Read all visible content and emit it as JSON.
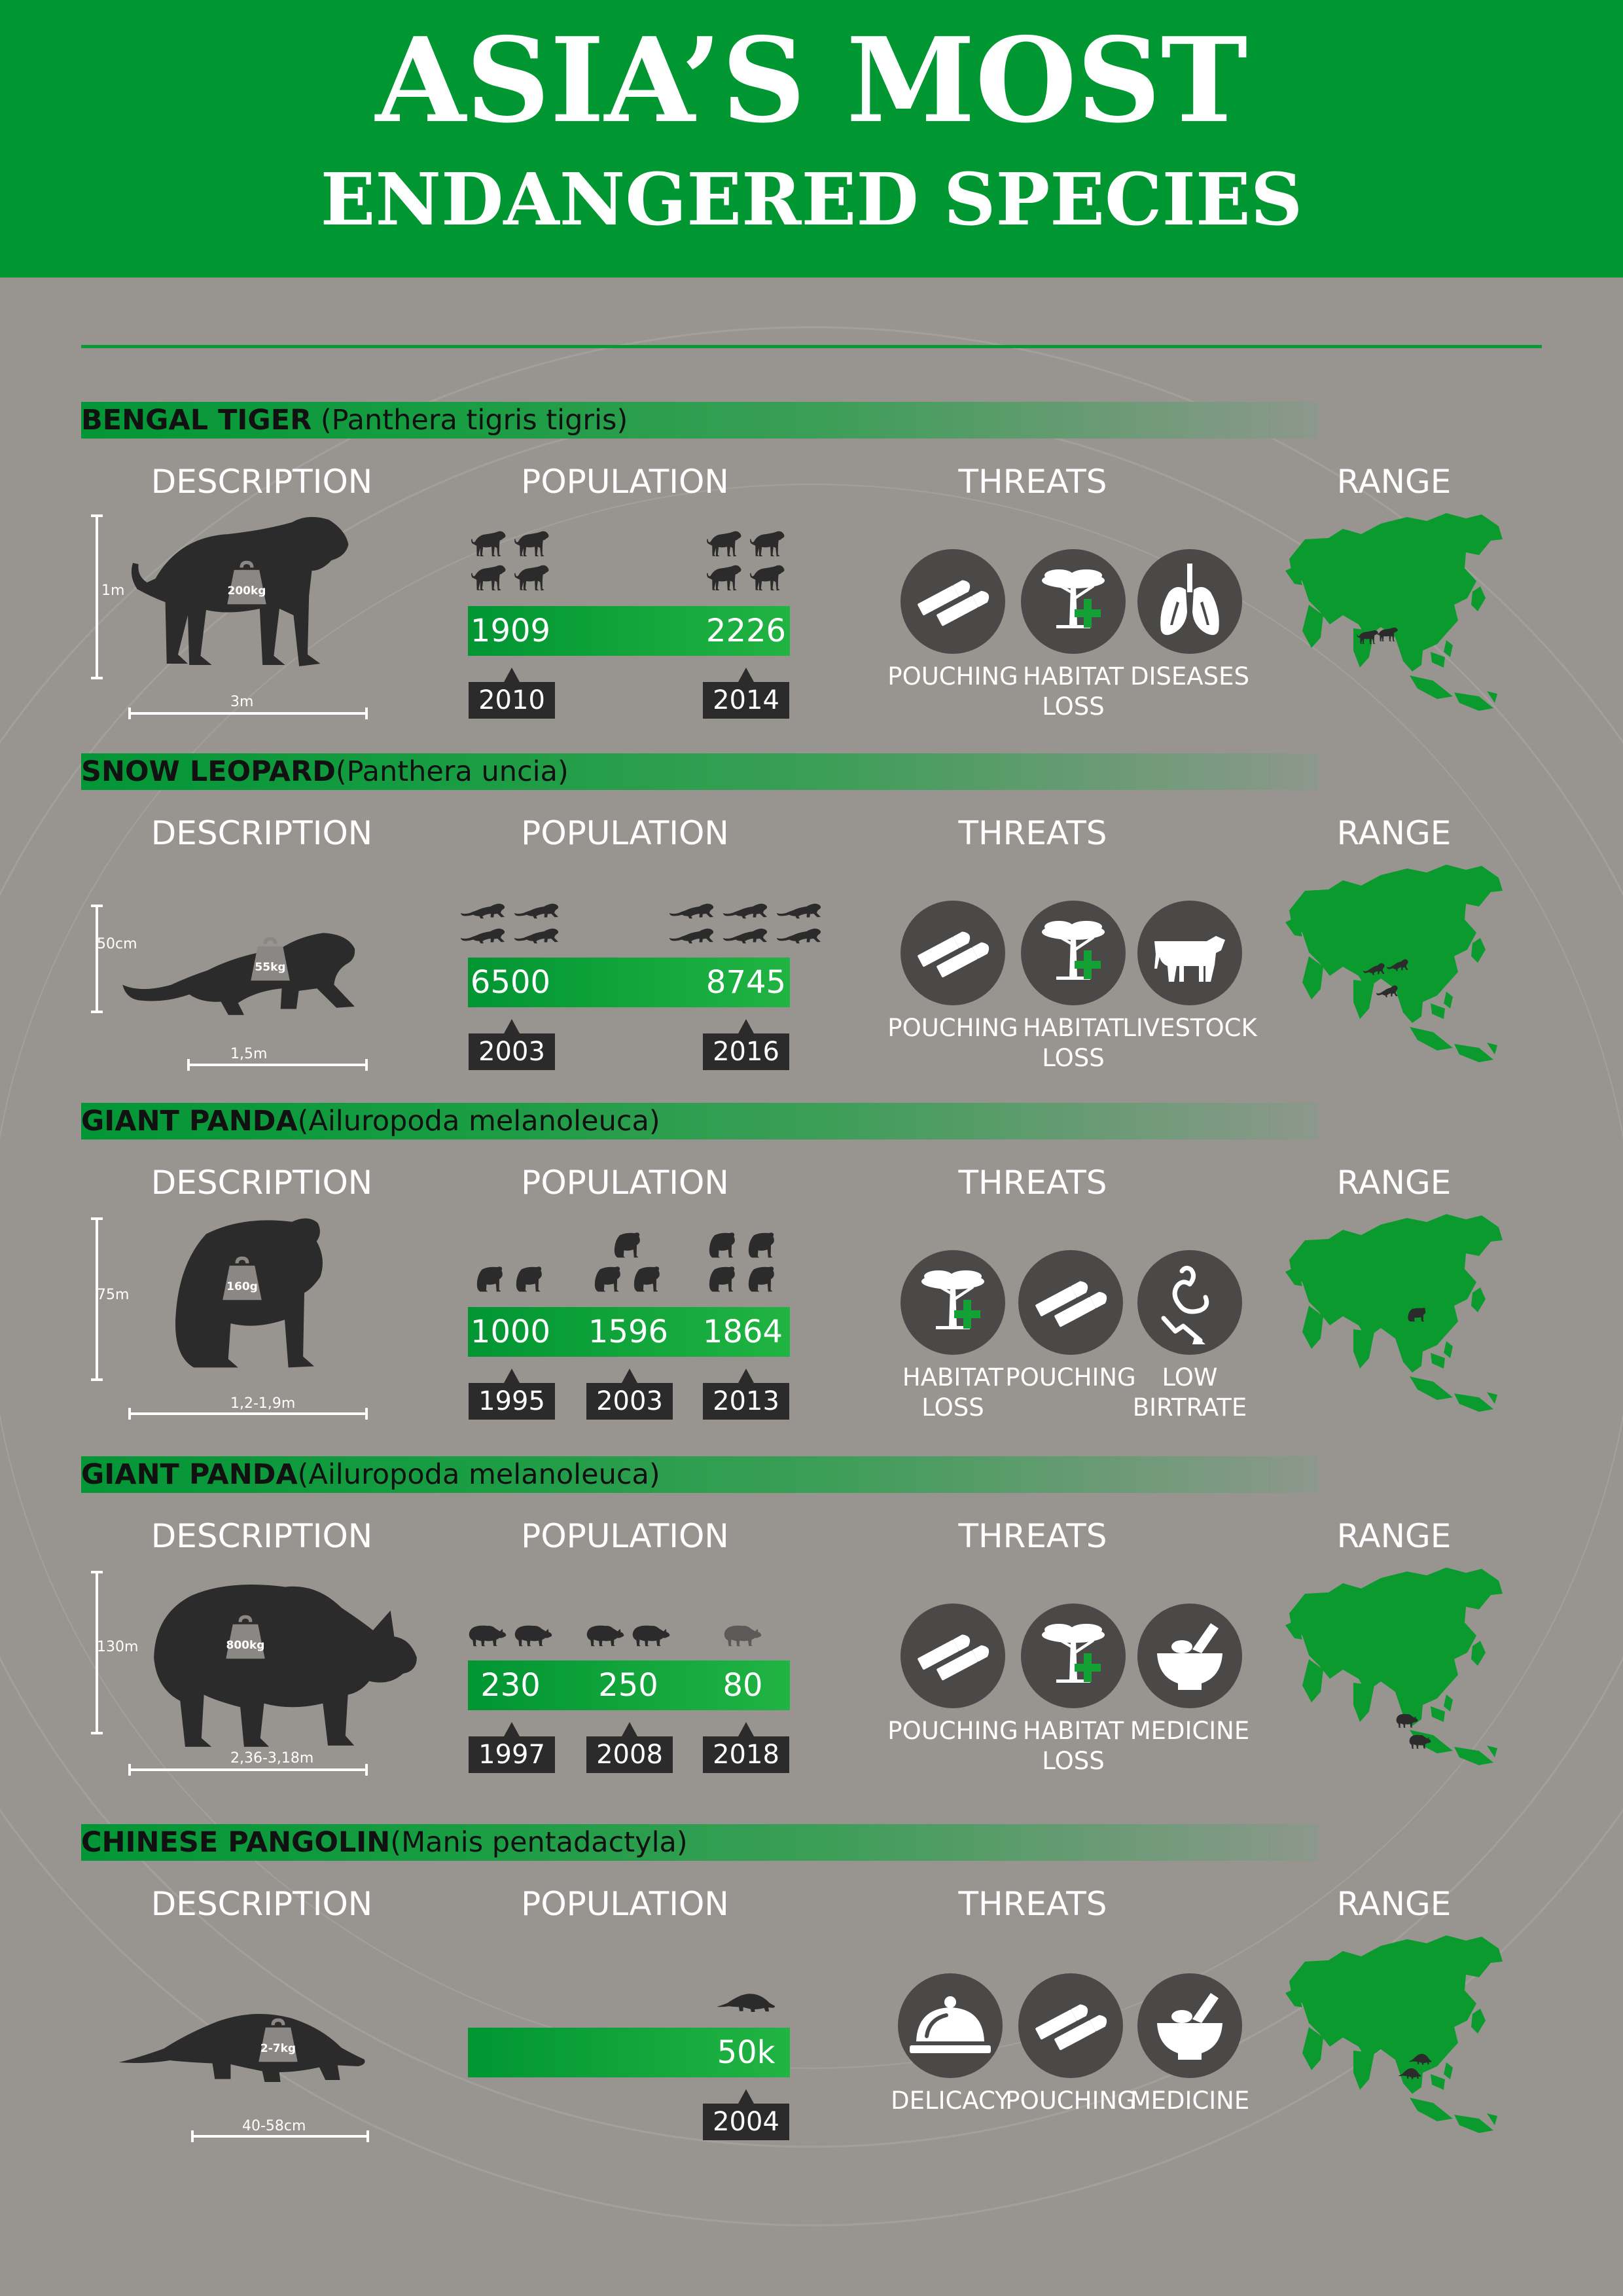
{
  "title": {
    "line1": "ASIA’S MOST",
    "line2": "ENDANGERED SPECIES"
  },
  "column_headers": {
    "description": "DESCRIPTION",
    "population": "POPULATION",
    "threats": "THREATS",
    "range": "RANGE"
  },
  "colors": {
    "header_green": "#009632",
    "background": "#989590",
    "icon_circle": "#4b4948",
    "year_box": "#2b2b2b",
    "map_green": "#0a9a2e"
  },
  "species": [
    {
      "common_name": "BENGAL TIGER",
      "scientific_name": " (Panthera tigris tigris)",
      "height": "1m",
      "length": "3m",
      "weight": "200kg",
      "population": [
        "1909",
        "2226"
      ],
      "years": [
        "2010",
        "2014"
      ],
      "threats": [
        {
          "label": "POUCHING",
          "icon": "bullets-icon"
        },
        {
          "label": "HABITAT\nLOSS",
          "icon": "tree-icon"
        },
        {
          "label": "DISEASES",
          "icon": "lungs-icon"
        }
      ]
    },
    {
      "common_name": "SNOW LEOPARD",
      "scientific_name": "(Panthera uncia)",
      "height": "50cm",
      "length": "1,5m",
      "weight": "55kg",
      "population": [
        "6500",
        "8745"
      ],
      "years": [
        "2003",
        "2016"
      ],
      "threats": [
        {
          "label": "POUCHING",
          "icon": "bullets-icon"
        },
        {
          "label": "HABITAT\nLOSS",
          "icon": "tree-icon"
        },
        {
          "label": "LIVESTOCK",
          "icon": "cow-icon"
        }
      ]
    },
    {
      "common_name": "GIANT PANDA",
      "scientific_name": "(Ailuropoda melanoleuca)",
      "height": "75m",
      "length": "1,2-1,9m",
      "weight": "160g",
      "population": [
        "1000",
        "1596",
        "1864"
      ],
      "years": [
        "1995",
        "2003",
        "2013"
      ],
      "threats": [
        {
          "label": "HABITAT\nLOSS",
          "icon": "tree-icon"
        },
        {
          "label": "POUCHING",
          "icon": "bullets-icon"
        },
        {
          "label": "LOW\nBIRTRATE",
          "icon": "stork-icon"
        }
      ]
    },
    {
      "common_name": "GIANT PANDA",
      "scientific_name": "(Ailuropoda melanoleuca)",
      "height": "130m",
      "length": "2,36-3,18m",
      "weight": "800kg",
      "population": [
        "230",
        "250",
        "80"
      ],
      "years": [
        "1997",
        "2008",
        "2018"
      ],
      "threats": [
        {
          "label": "POUCHING",
          "icon": "bullets-icon"
        },
        {
          "label": "HABITAT\nLOSS",
          "icon": "tree-icon"
        },
        {
          "label": "MEDICINE",
          "icon": "mortar-icon"
        }
      ]
    },
    {
      "common_name": "CHINESE PANGOLIN",
      "scientific_name": "(Manis pentadactyla)",
      "height": "",
      "length": "40-58cm",
      "weight": "2-7kg",
      "population": [
        "50k"
      ],
      "years": [
        "2004"
      ],
      "threats": [
        {
          "label": "DELICACY",
          "icon": "cloche-icon"
        },
        {
          "label": "POUCHING",
          "icon": "bullets-icon"
        },
        {
          "label": "MEDICINE",
          "icon": "mortar-icon"
        }
      ]
    }
  ]
}
